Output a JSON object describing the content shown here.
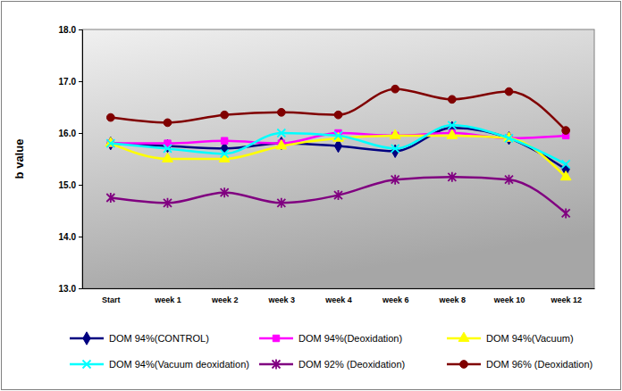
{
  "chart_data": {
    "type": "line",
    "y_label": "b value",
    "categories": [
      "Start",
      "week 1",
      "week 2",
      "week 3",
      "week 4",
      "week 6",
      "week 8",
      "week 10",
      "week 12"
    ],
    "ylim": [
      13,
      18
    ],
    "yticks": [
      {
        "value": 13,
        "label": "13.0"
      },
      {
        "value": 14,
        "label": "14.0"
      },
      {
        "value": 15,
        "label": "15.0"
      },
      {
        "value": 16,
        "label": "16.0"
      },
      {
        "value": 17,
        "label": "17.0"
      },
      {
        "value": 18,
        "label": "18.0"
      }
    ],
    "grid": false,
    "legend": "bottom",
    "series": [
      {
        "name": "DOM 94%(CONTROL)",
        "color": "#000080",
        "marker": "diamond",
        "values": [
          15.8,
          15.75,
          15.7,
          15.8,
          15.75,
          15.65,
          16.1,
          15.9,
          15.3
        ]
      },
      {
        "name": "DOM 94%(Deoxidation)",
        "color": "#ff00ff",
        "marker": "square",
        "values": [
          15.8,
          15.8,
          15.85,
          15.8,
          16.0,
          15.95,
          16.0,
          15.9,
          15.95
        ]
      },
      {
        "name": "DOM 94%(Vacuum)",
        "color": "#ffff00",
        "marker": "triangle",
        "values": [
          15.8,
          15.5,
          15.5,
          15.75,
          15.9,
          15.95,
          15.95,
          15.9,
          15.15
        ]
      },
      {
        "name": "DOM 94%(Vacuum deoxidation)",
        "color": "#00ffff",
        "marker": "x",
        "values": [
          15.8,
          15.7,
          15.6,
          16.0,
          15.95,
          15.7,
          16.15,
          15.9,
          15.4
        ]
      },
      {
        "name": "DOM 92% (Deoxidation)",
        "color": "#800080",
        "marker": "star",
        "values": [
          14.75,
          14.65,
          14.85,
          14.65,
          14.8,
          15.1,
          15.15,
          15.1,
          14.45
        ]
      },
      {
        "name": "DOM 96% (Deoxidation)",
        "color": "#800000",
        "marker": "circle",
        "values": [
          16.3,
          16.2,
          16.35,
          16.4,
          16.35,
          16.85,
          16.65,
          16.8,
          16.05
        ]
      }
    ]
  }
}
